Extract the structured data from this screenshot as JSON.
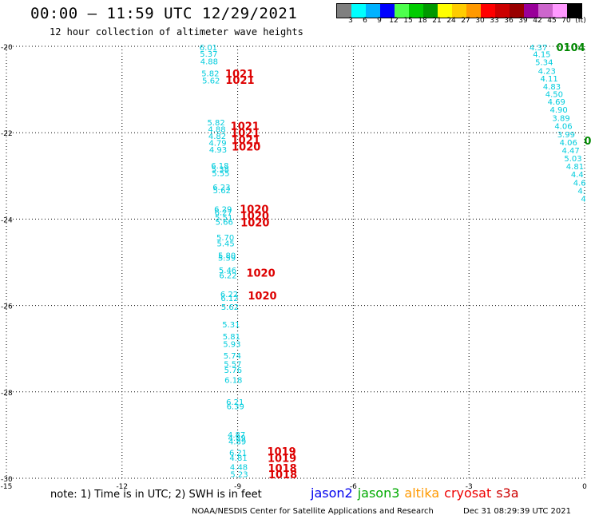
{
  "header": {
    "title": "00:00 — 11:59 UTC 12/29/2021",
    "subtitle": "12 hour collection of altimeter wave heights"
  },
  "colorbar": {
    "colors": [
      "#7f7f7f",
      "#00ffff",
      "#00b2ff",
      "#0000ff",
      "#4dff4d",
      "#00cc00",
      "#009900",
      "#ffff00",
      "#ffcc00",
      "#ff9900",
      "#ff0000",
      "#cc0000",
      "#990000",
      "#990099",
      "#cc66cc",
      "#ff99ff",
      "#000000"
    ],
    "labels": [
      "3",
      "6",
      "9",
      "12",
      "15",
      "18",
      "21",
      "24",
      "27",
      "30",
      "33",
      "36",
      "39",
      "42",
      "45",
      "70",
      "(ft)"
    ]
  },
  "chart_data": {
    "type": "scatter",
    "title": "",
    "xlabel": "",
    "ylabel": "",
    "xlim": [
      -15,
      0
    ],
    "ylim": [
      -30,
      -20
    ],
    "xticks": [
      "-15",
      "-12",
      "-9",
      "-6",
      "-3",
      "0"
    ],
    "yticks": [
      "-20",
      "-22",
      "-24",
      "-26",
      "-28",
      "-30"
    ],
    "grid": true,
    "series": [
      {
        "name": "SWH",
        "color": "#00ccdd",
        "points": [
          {
            "x": -9.76,
            "y": -20.02,
            "label": "6.01"
          },
          {
            "x": -9.75,
            "y": -20.17,
            "label": "5.37"
          },
          {
            "x": -9.74,
            "y": -20.34,
            "label": "4.88"
          },
          {
            "x": -9.71,
            "y": -20.62,
            "label": "5.82"
          },
          {
            "x": -9.69,
            "y": -20.79,
            "label": "5.62"
          },
          {
            "x": -9.56,
            "y": -21.76,
            "label": "5.82"
          },
          {
            "x": -9.54,
            "y": -21.91,
            "label": "4.88"
          },
          {
            "x": -9.53,
            "y": -22.07,
            "label": "4.82"
          },
          {
            "x": -9.52,
            "y": -22.23,
            "label": "4.79"
          },
          {
            "x": -9.51,
            "y": -22.38,
            "label": "4.93"
          },
          {
            "x": -9.46,
            "y": -22.75,
            "label": "6.18"
          },
          {
            "x": -9.45,
            "y": -22.84,
            "label": "5.38"
          },
          {
            "x": -9.44,
            "y": -22.93,
            "label": "5.55"
          },
          {
            "x": -9.42,
            "y": -23.25,
            "label": "6.23"
          },
          {
            "x": -9.41,
            "y": -23.33,
            "label": "5.62"
          },
          {
            "x": -9.38,
            "y": -23.76,
            "label": "6.29"
          },
          {
            "x": -9.37,
            "y": -23.84,
            "label": "6.27"
          },
          {
            "x": -9.36,
            "y": -23.96,
            "label": "5.51"
          },
          {
            "x": -9.35,
            "y": -24.06,
            "label": "5.66"
          },
          {
            "x": -9.32,
            "y": -24.42,
            "label": "5.70"
          },
          {
            "x": -9.31,
            "y": -24.56,
            "label": "5.45"
          },
          {
            "x": -9.28,
            "y": -24.83,
            "label": "5.80"
          },
          {
            "x": -9.28,
            "y": -24.89,
            "label": "5.59"
          },
          {
            "x": -9.26,
            "y": -25.18,
            "label": "5.46"
          },
          {
            "x": -9.25,
            "y": -25.3,
            "label": "6.22"
          },
          {
            "x": -9.22,
            "y": -25.73,
            "label": "6.22"
          },
          {
            "x": -9.21,
            "y": -25.82,
            "label": "6.12"
          },
          {
            "x": -9.2,
            "y": -26.03,
            "label": "5.62"
          },
          {
            "x": -9.17,
            "y": -26.43,
            "label": "5.31"
          },
          {
            "x": -9.16,
            "y": -26.71,
            "label": "5.81"
          },
          {
            "x": -9.15,
            "y": -26.89,
            "label": "5.93"
          },
          {
            "x": -9.14,
            "y": -27.15,
            "label": "5.74"
          },
          {
            "x": -9.13,
            "y": -27.35,
            "label": "5.57"
          },
          {
            "x": -9.12,
            "y": -27.49,
            "label": "5.76"
          },
          {
            "x": -9.11,
            "y": -27.72,
            "label": "6.18"
          },
          {
            "x": -9.07,
            "y": -28.23,
            "label": "6.21"
          },
          {
            "x": -9.06,
            "y": -28.33,
            "label": "6.39"
          },
          {
            "x": -9.03,
            "y": -28.98,
            "label": "4.87"
          },
          {
            "x": -9.02,
            "y": -29.06,
            "label": "4.89"
          },
          {
            "x": -9.01,
            "y": -29.14,
            "label": "4.89"
          },
          {
            "x": -8.99,
            "y": -29.4,
            "label": "6.21"
          },
          {
            "x": -8.98,
            "y": -29.52,
            "label": "4.81"
          },
          {
            "x": -8.97,
            "y": -29.73,
            "label": "4.48"
          },
          {
            "x": -8.96,
            "y": -29.9,
            "label": "5.23"
          },
          {
            "x": -1.2,
            "y": -20.02,
            "label": "4.37"
          },
          {
            "x": -1.11,
            "y": -20.18,
            "label": "4.15"
          },
          {
            "x": -1.05,
            "y": -20.36,
            "label": "5.34"
          },
          {
            "x": -0.98,
            "y": -20.56,
            "label": "4.23"
          },
          {
            "x": -0.92,
            "y": -20.74,
            "label": "4.11"
          },
          {
            "x": -0.85,
            "y": -20.92,
            "label": "4.83"
          },
          {
            "x": -0.79,
            "y": -21.1,
            "label": "4.50"
          },
          {
            "x": -0.73,
            "y": -21.28,
            "label": "4.69"
          },
          {
            "x": -0.67,
            "y": -21.46,
            "label": "4.90"
          },
          {
            "x": -0.61,
            "y": -21.65,
            "label": "3.89"
          },
          {
            "x": -0.55,
            "y": -21.84,
            "label": "4.06"
          },
          {
            "x": -0.48,
            "y": -22.03,
            "label": "3.99"
          },
          {
            "x": -0.42,
            "y": -22.22,
            "label": "4.06"
          },
          {
            "x": -0.36,
            "y": -22.4,
            "label": "4.47"
          },
          {
            "x": -0.3,
            "y": -22.59,
            "label": "5.03"
          },
          {
            "x": -0.25,
            "y": -22.77,
            "label": "4.81"
          },
          {
            "x": -0.19,
            "y": -22.96,
            "label": "4.4"
          },
          {
            "x": -0.13,
            "y": -23.15,
            "label": "4.6"
          },
          {
            "x": -0.08,
            "y": -23.34,
            "label": "4."
          },
          {
            "x": -0.03,
            "y": -23.52,
            "label": "4"
          }
        ]
      },
      {
        "name": "pressure (red)",
        "color": "#dd0000",
        "points": [
          {
            "x": -8.95,
            "y": -20.63,
            "label": "1021"
          },
          {
            "x": -8.94,
            "y": -20.78,
            "label": "1021"
          },
          {
            "x": -8.81,
            "y": -21.84,
            "label": "1021"
          },
          {
            "x": -8.8,
            "y": -22.0,
            "label": "1021"
          },
          {
            "x": -8.79,
            "y": -22.16,
            "label": "1021"
          },
          {
            "x": -8.78,
            "y": -22.32,
            "label": "1020"
          },
          {
            "x": -8.57,
            "y": -23.76,
            "label": "1020"
          },
          {
            "x": -8.56,
            "y": -23.92,
            "label": "1020"
          },
          {
            "x": -8.55,
            "y": -24.08,
            "label": "1020"
          },
          {
            "x": -8.4,
            "y": -25.24,
            "label": "1020"
          },
          {
            "x": -8.36,
            "y": -25.77,
            "label": "1020"
          },
          {
            "x": -7.86,
            "y": -29.37,
            "label": "1019"
          },
          {
            "x": -7.85,
            "y": -29.53,
            "label": "1019"
          },
          {
            "x": -7.84,
            "y": -29.76,
            "label": "1018"
          },
          {
            "x": -7.83,
            "y": -29.91,
            "label": "1018"
          }
        ]
      },
      {
        "name": "pressure (green)",
        "color": "#008800",
        "points": [
          {
            "x": -0.36,
            "y": -20.02,
            "label": "0104"
          },
          {
            "x": 0.08,
            "y": -22.18,
            "label": "0"
          }
        ]
      }
    ]
  },
  "note": "note:  1) Time is in UTC;  2) SWH is in feet",
  "legend": [
    {
      "label": "jason2",
      "color": "#0000ee"
    },
    {
      "label": "jason3",
      "color": "#00aa00"
    },
    {
      "label": "altika",
      "color": "#ff9900"
    },
    {
      "label": "cryosat",
      "color": "#ee0000"
    },
    {
      "label": "s3a",
      "color": "#cc0000"
    }
  ],
  "footer": {
    "credit": "NOAA/NESDIS Center for Satellite Applications and Research",
    "timestamp": "Dec 31 08:29:39 UTC 2021"
  }
}
